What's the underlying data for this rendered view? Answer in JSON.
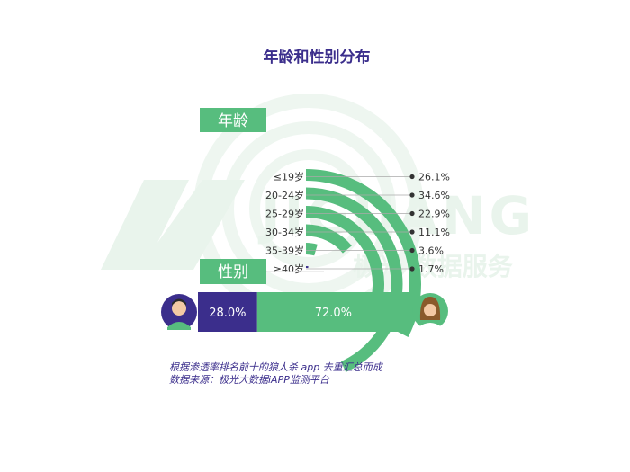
{
  "title": "年龄和性别分布",
  "age_label": "年龄",
  "gender_label": "性别",
  "watermark": {
    "brand": "JIGUANG",
    "service": "极光 数据服务"
  },
  "colors": {
    "title": "#3b2e8c",
    "label_bg": "#57bd7e",
    "bar_green": "#57bd7e",
    "bar_purple": "#3b2e8c",
    "leader_line": "#aaaaaa",
    "text": "#333333",
    "watermark": "#e9f4ec"
  },
  "chart_data": [
    {
      "type": "radial-bar",
      "name": "年龄",
      "categories": [
        "≤19岁",
        "20-24岁",
        "25-29岁",
        "30-34岁",
        "35-39岁",
        "≥40岁"
      ],
      "values": [
        26.1,
        34.6,
        22.9,
        11.1,
        3.6,
        1.7
      ],
      "value_labels": [
        "26.1%",
        "34.6%",
        "22.9%",
        "11.1%",
        "3.6%",
        "1.7%"
      ],
      "unit": "%"
    },
    {
      "type": "stacked-bar",
      "name": "性别",
      "categories": [
        "男",
        "女"
      ],
      "values": [
        28.0,
        72.0
      ],
      "value_labels": [
        "28.0%",
        "72.0%"
      ],
      "unit": "%"
    }
  ],
  "footnote": {
    "line1": "根据渗透率排名前十的狼人杀 app 去重汇总而成",
    "line2": "数据来源：极光大数据iAPP监测平台"
  }
}
